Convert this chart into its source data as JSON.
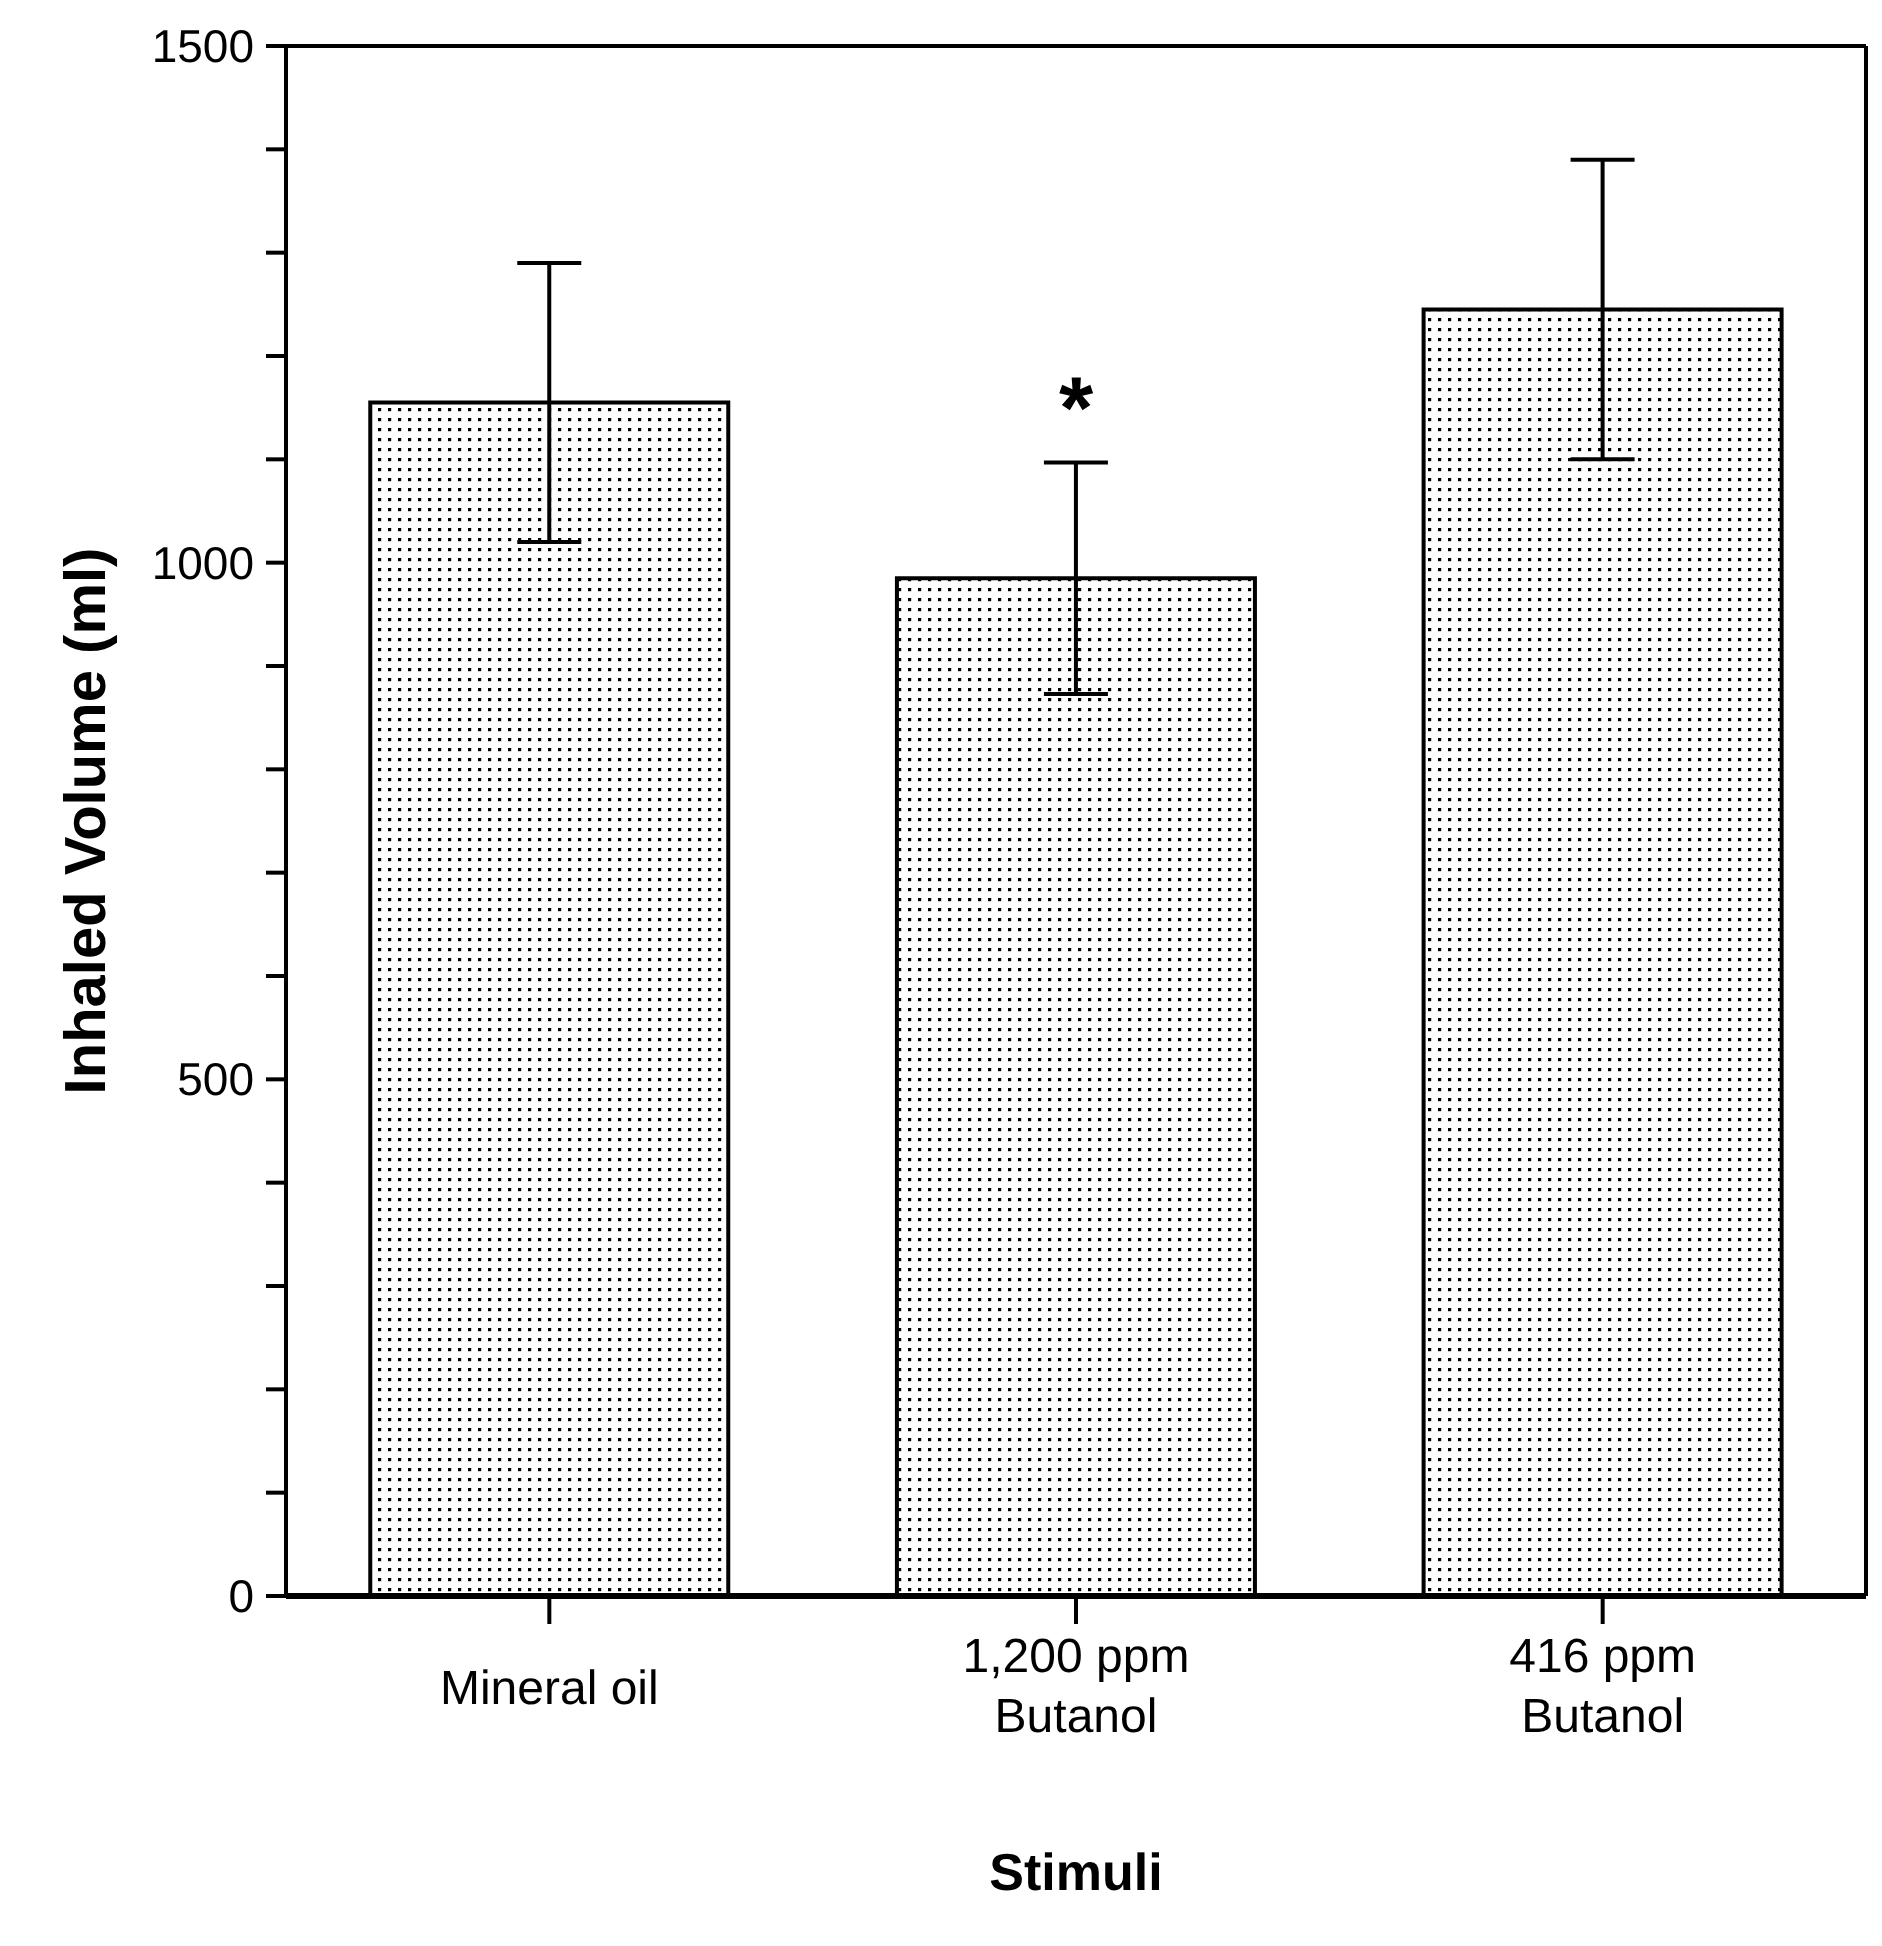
{
  "chart_data": {
    "type": "bar",
    "xlabel": "Stimuli",
    "ylabel": "Inhaled Volume (ml)",
    "categories": [
      "Mineral oil",
      "1,200 ppm Butanol",
      "416 ppm Butanol"
    ],
    "values": [
      1155,
      985,
      1245
    ],
    "errors": [
      135,
      112,
      145
    ],
    "color": "#000000",
    "ylim": [
      0,
      1500
    ],
    "yticks": [
      0,
      {
        "value": 100,
        "label": null
      },
      {
        "value": 200,
        "label": null
      },
      {
        "value": 300,
        "label": null
      },
      {
        "value": 400,
        "label": null
      },
      500,
      {
        "value": 600,
        "label": null
      },
      {
        "value": 700,
        "label": null
      },
      {
        "value": 800,
        "label": null
      },
      {
        "value": 900,
        "label": null
      },
      1000,
      {
        "value": 1100,
        "label": null
      },
      {
        "value": 1200,
        "label": null
      },
      {
        "value": 1300,
        "label": null
      },
      {
        "value": 1400,
        "label": null
      },
      1500
    ],
    "annotations": [
      "*"
    ]
  }
}
